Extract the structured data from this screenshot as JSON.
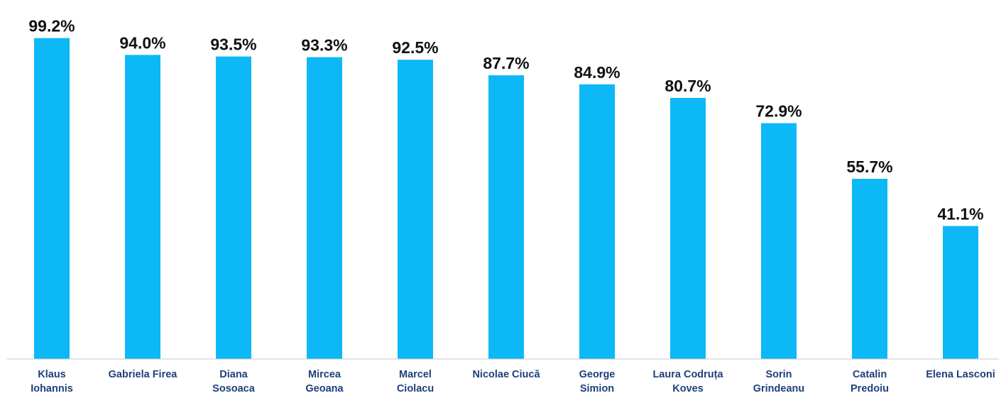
{
  "chart_data": {
    "type": "bar",
    "title": "",
    "xlabel": "",
    "ylabel": "",
    "ylim": [
      0,
      100
    ],
    "grid": false,
    "legend": "none",
    "categories": [
      [
        "Klaus",
        "Iohannis"
      ],
      [
        "Gabriela Firea"
      ],
      [
        "Diana",
        "Sosoaca"
      ],
      [
        "Mircea",
        "Geoana"
      ],
      [
        "Marcel",
        "Ciolacu"
      ],
      [
        "Nicolae Ciucă"
      ],
      [
        "George",
        "Simion"
      ],
      [
        "Laura Codruța",
        "Koves"
      ],
      [
        "Sorin",
        "Grindeanu"
      ],
      [
        "Catalin",
        "Predoiu"
      ],
      [
        "Elena Lasconi"
      ]
    ],
    "values": [
      99.2,
      94.0,
      93.5,
      93.3,
      92.5,
      87.7,
      84.9,
      80.7,
      72.9,
      55.7,
      41.1
    ],
    "value_labels": [
      "99.2%",
      "94.0%",
      "93.5%",
      "93.3%",
      "92.5%",
      "87.7%",
      "84.9%",
      "80.7%",
      "72.9%",
      "55.7%",
      "41.1%"
    ],
    "colors": {
      "bar": "#0DB8F7",
      "category_text": "#1F3F7A",
      "value_text": "#111111",
      "axis": "#C8C8C8"
    }
  }
}
